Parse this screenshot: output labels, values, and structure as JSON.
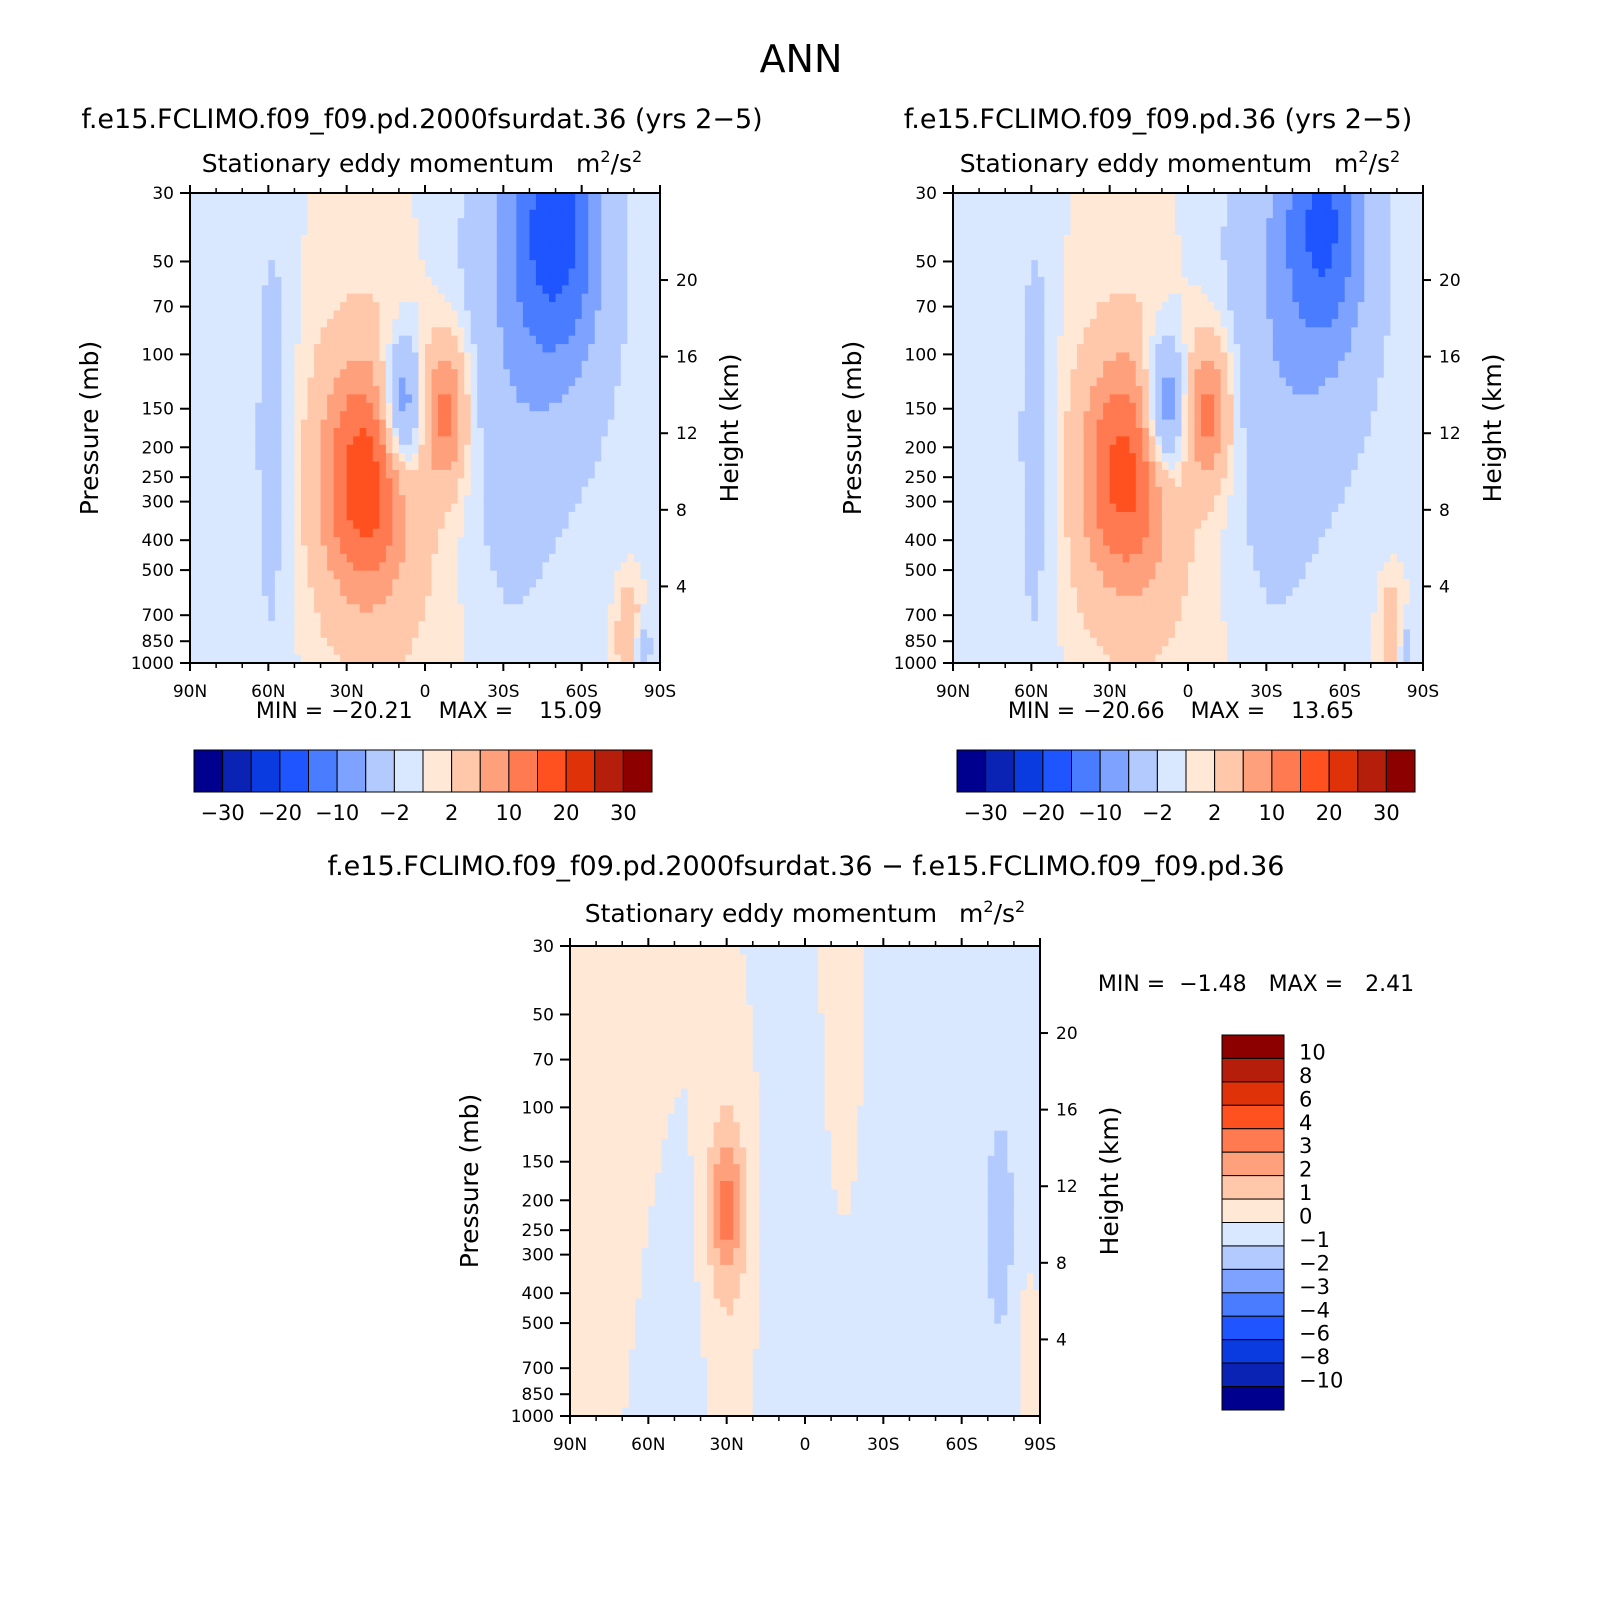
{
  "figure_title": "ANN",
  "colors": {
    "top_levels": [
      -30,
      -25,
      -20,
      -15,
      -10,
      -6,
      -2,
      0,
      2,
      6,
      10,
      15,
      20,
      25,
      30
    ],
    "top_palette": [
      "#00008e",
      "#0a23b4",
      "#0a3be0",
      "#1e55ff",
      "#4a7cff",
      "#7ea2ff",
      "#b3caff",
      "#d9e8ff",
      "#ffe8d6",
      "#ffc8aa",
      "#ffa07c",
      "#ff7a50",
      "#ff5020",
      "#e03208",
      "#b41e0a",
      "#8c0000"
    ],
    "diff_palette": [
      "#00008e",
      "#0a23b4",
      "#0a3be0",
      "#1e55ff",
      "#4a7cff",
      "#7ea2ff",
      "#b3caff",
      "#d9e8ff",
      "#ffe8d6",
      "#ffc8aa",
      "#ffa07c",
      "#ff7a50",
      "#ff5020",
      "#e03208",
      "#b41e0a",
      "#8c0000"
    ]
  },
  "chart_data": [
    {
      "type": "heatmap",
      "panel": "control_case",
      "title": "f.e15.FCLIMO.f09_f09.pd.2000fsurdat.36 (yrs 2−5)",
      "subtitle": "Stationary eddy momentum",
      "units_base": "m",
      "units_exp1": "2",
      "units_mid": "/s",
      "units_exp2": "2",
      "ylabel": "Pressure (mb)",
      "ylabel_right": "Height (km)",
      "x_ticks": [
        "90N",
        "60N",
        "30N",
        "0",
        "30S",
        "60S",
        "90S"
      ],
      "x_range": [
        90,
        -90
      ],
      "y_ticks": [
        "30",
        "50",
        "70",
        "100",
        "150",
        "200",
        "250",
        "300",
        "400",
        "500",
        "700",
        "850",
        "1000"
      ],
      "y_ticks_right": [
        "20",
        "16",
        "12",
        "8",
        "4"
      ],
      "min_label": "MIN =",
      "min_value": "−20.21",
      "max_label": "MAX =",
      "max_value": "15.09",
      "colorbar_labels": [
        "−30",
        "−20",
        "−10",
        "−2",
        "2",
        "10",
        "20",
        "30"
      ],
      "features": [
        {
          "lat": 23,
          "p": 255,
          "amp": 14.5,
          "slat": 11,
          "sl": 0.55
        },
        {
          "lat": 23,
          "p": 260,
          "amp": 4,
          "slat": 16,
          "sl": 1.0
        },
        {
          "lat": -8,
          "p": 152,
          "amp": 11.5,
          "slat": 6,
          "sl": 0.38
        },
        {
          "lat": 9,
          "p": 152,
          "amp": -13,
          "slat": 6,
          "sl": 0.38
        },
        {
          "lat": -50,
          "p": 38,
          "amp": -14,
          "slat": 11,
          "sl": 0.65
        },
        {
          "lat": -45,
          "p": 60,
          "amp": -5,
          "slat": 22,
          "sl": 1.3
        },
        {
          "lat": 58,
          "p": 200,
          "amp": -3,
          "slat": 6,
          "sl": 1.6
        },
        {
          "lat": -30,
          "p": 300,
          "amp": -2.5,
          "slat": 14,
          "sl": 1.6
        },
        {
          "lat": 80,
          "p": 200,
          "amp": -1.5,
          "slat": 9,
          "sl": 2.0
        },
        {
          "lat": -15,
          "p": 500,
          "amp": 1.3,
          "slat": 25,
          "sl": 1.4
        },
        {
          "lat": -78,
          "p": 800,
          "amp": 7,
          "slat": 3,
          "sl": 0.25
        },
        {
          "lat": -83,
          "p": 880,
          "amp": -5,
          "slat": 2.5,
          "sl": 0.15
        }
      ]
    },
    {
      "type": "heatmap",
      "panel": "test_case",
      "title": "f.e15.FCLIMO.f09_f09.pd.36 (yrs 2−5)",
      "subtitle": "Stationary eddy momentum",
      "units_base": "m",
      "units_exp1": "2",
      "units_mid": "/s",
      "units_exp2": "2",
      "ylabel": "Pressure (mb)",
      "ylabel_right": "Height (km)",
      "x_ticks": [
        "90N",
        "60N",
        "30N",
        "0",
        "30S",
        "60S",
        "90S"
      ],
      "x_range": [
        90,
        -90
      ],
      "y_ticks": [
        "30",
        "50",
        "70",
        "100",
        "150",
        "200",
        "250",
        "300",
        "400",
        "500",
        "700",
        "850",
        "1000"
      ],
      "y_ticks_right": [
        "20",
        "16",
        "12",
        "8",
        "4"
      ],
      "min_label": "MIN =",
      "min_value": "−20.66",
      "max_label": "MAX =",
      "max_value": "13.65",
      "colorbar_labels": [
        "−30",
        "−20",
        "−10",
        "−2",
        "2",
        "10",
        "20",
        "30"
      ],
      "features": [
        {
          "lat": 24,
          "p": 240,
          "amp": 13.5,
          "slat": 11,
          "sl": 0.55
        },
        {
          "lat": 24,
          "p": 260,
          "amp": 3.5,
          "slat": 16,
          "sl": 1.0
        },
        {
          "lat": -8,
          "p": 152,
          "amp": 11.5,
          "slat": 6,
          "sl": 0.38
        },
        {
          "lat": 9,
          "p": 152,
          "amp": -13,
          "slat": 6,
          "sl": 0.38
        },
        {
          "lat": -52,
          "p": 38,
          "amp": -12,
          "slat": 10,
          "sl": 0.6
        },
        {
          "lat": -45,
          "p": 60,
          "amp": -5,
          "slat": 22,
          "sl": 1.3
        },
        {
          "lat": 58,
          "p": 200,
          "amp": -3,
          "slat": 6,
          "sl": 1.6
        },
        {
          "lat": -30,
          "p": 300,
          "amp": -2.5,
          "slat": 14,
          "sl": 1.6
        },
        {
          "lat": 80,
          "p": 200,
          "amp": -1.5,
          "slat": 9,
          "sl": 2.0
        },
        {
          "lat": -15,
          "p": 500,
          "amp": 1.3,
          "slat": 25,
          "sl": 1.4
        },
        {
          "lat": -78,
          "p": 800,
          "amp": 6,
          "slat": 3,
          "sl": 0.25
        },
        {
          "lat": -83,
          "p": 880,
          "amp": -4,
          "slat": 2.5,
          "sl": 0.15
        }
      ]
    },
    {
      "type": "heatmap",
      "panel": "difference",
      "title": "f.e15.FCLIMO.f09_f09.pd.2000fsurdat.36 − f.e15.FCLIMO.f09_f09.pd.36",
      "subtitle": "Stationary eddy momentum",
      "units_base": "m",
      "units_exp1": "2",
      "units_mid": "/s",
      "units_exp2": "2",
      "ylabel": "Pressure (mb)",
      "ylabel_right": "Height (km)",
      "x_ticks": [
        "90N",
        "60N",
        "30N",
        "0",
        "30S",
        "60S",
        "90S"
      ],
      "x_range": [
        90,
        -90
      ],
      "y_ticks": [
        "30",
        "50",
        "70",
        "100",
        "150",
        "200",
        "250",
        "300",
        "400",
        "500",
        "700",
        "850",
        "1000"
      ],
      "y_ticks_right": [
        "20",
        "16",
        "12",
        "8",
        "4"
      ],
      "min_label": "MIN =",
      "min_value": "−1.48",
      "max_label": "MAX =",
      "max_value": "2.41",
      "levels": [
        -10,
        -8,
        -6,
        -4,
        -3,
        -2,
        -1,
        0,
        1,
        2,
        3,
        4,
        6,
        8,
        10
      ],
      "colorbar_labels": [
        "10",
        "8",
        "6",
        "4",
        "3",
        "2",
        "1",
        "0",
        "−1",
        "−2",
        "−3",
        "−4",
        "−6",
        "−8",
        "−10"
      ],
      "features": [
        {
          "lat": 30,
          "p": 210,
          "amp": 2.4,
          "slat": 4,
          "sl": 0.35
        },
        {
          "lat": 30,
          "p": 230,
          "amp": 1.3,
          "slat": 9,
          "sl": 0.9
        },
        {
          "lat": 50,
          "p": 400,
          "amp": -0.9,
          "slat": 10,
          "sl": 1.4
        },
        {
          "lat": 5,
          "p": 300,
          "amp": -0.9,
          "slat": 10,
          "sl": 2.2
        },
        {
          "lat": -35,
          "p": 150,
          "amp": -0.8,
          "slat": 12,
          "sl": 2.0
        },
        {
          "lat": -75,
          "p": 250,
          "amp": -1.4,
          "slat": 3,
          "sl": 0.45
        },
        {
          "lat": -72,
          "p": 150,
          "amp": -0.7,
          "slat": 14,
          "sl": 2.2
        },
        {
          "lat": 62,
          "p": 60,
          "amp": 0.8,
          "slat": 12,
          "sl": 1.5
        },
        {
          "lat": -15,
          "p": 50,
          "amp": 0.7,
          "slat": 8,
          "sl": 1.2
        },
        {
          "lat": -85,
          "p": 600,
          "amp": 0.6,
          "slat": 4,
          "sl": 0.6
        }
      ]
    }
  ]
}
